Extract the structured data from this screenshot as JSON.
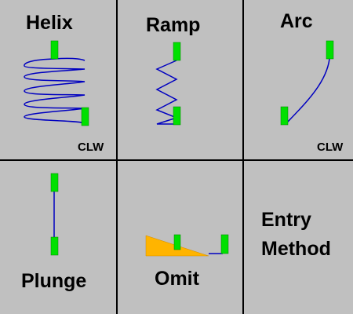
{
  "colors": {
    "background": "#c0c0c0",
    "grid_line": "#000000",
    "marker": "#00e000",
    "path": "#0000c0",
    "omit_wedge": "#ffb400"
  },
  "entry_methods": {
    "helix": {
      "label": "Helix",
      "direction": "CLW",
      "icon": "helix-path-icon"
    },
    "ramp": {
      "label": "Ramp",
      "icon": "ramp-path-icon"
    },
    "arc": {
      "label": "Arc",
      "direction": "CLW",
      "icon": "arc-path-icon"
    },
    "plunge": {
      "label": "Plunge",
      "icon": "plunge-path-icon"
    },
    "omit": {
      "label": "Omit",
      "icon": "omit-wedge-icon"
    },
    "title": {
      "line1": "Entry",
      "line2": "Method"
    }
  }
}
